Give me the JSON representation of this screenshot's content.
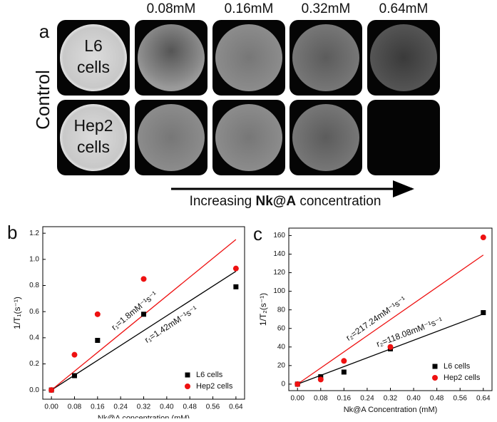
{
  "panel_a": {
    "label": "a",
    "columns": [
      "0.08mM",
      "0.16mM",
      "0.32mM",
      "0.64mM"
    ],
    "row_title": "Control",
    "rows": [
      [
        "L6",
        "cells"
      ],
      [
        "Hep2",
        "cells"
      ]
    ],
    "arrow_text": {
      "before": "Increasing",
      "bold": "Nk@A",
      "after": "concentration"
    }
  },
  "chart_data": [
    {
      "type": "scatter",
      "panel": "b",
      "x_label": "Nk@A concentration (mM)",
      "y_label": "1/T₁(s⁻¹)",
      "x": [
        0,
        0.08,
        0.16,
        0.32,
        0.64
      ],
      "series": [
        {
          "name": "L6 cells",
          "color": "#000000",
          "marker": "square",
          "values": [
            0,
            0.11,
            0.38,
            0.58,
            0.79
          ]
        },
        {
          "name": "Hep2 cells",
          "color": "#ee1111",
          "marker": "circle",
          "values": [
            0,
            0.27,
            0.58,
            0.85,
            0.93
          ]
        }
      ],
      "fits": [
        {
          "color": "#000000",
          "slope": 1.42,
          "label": "r₁=1.42mM⁻¹s⁻¹"
        },
        {
          "color": "#ee1111",
          "slope": 1.8,
          "label": "r₁=1.8mM⁻¹s⁻¹"
        }
      ],
      "xlim": [
        -0.03,
        0.67
      ],
      "ylim": [
        -0.07,
        1.25
      ],
      "xticks": [
        {
          "value": 0,
          "label": "0.00"
        },
        {
          "value": 0.08,
          "label": "0.08"
        },
        {
          "value": 0.16,
          "label": "0.16"
        },
        {
          "value": 0.24,
          "label": "0.24"
        },
        {
          "value": 0.32,
          "label": "0.32"
        },
        {
          "value": 0.4,
          "label": "0.40"
        },
        {
          "value": 0.48,
          "label": "0.48"
        },
        {
          "value": 0.56,
          "label": "0.56"
        },
        {
          "value": 0.64,
          "label": "0.64"
        }
      ],
      "yticks": [
        {
          "value": 0,
          "label": "0.0"
        },
        {
          "value": 0.2,
          "label": "0.2"
        },
        {
          "value": 0.4,
          "label": "0.4"
        },
        {
          "value": 0.6,
          "label": "0.6"
        },
        {
          "value": 0.8,
          "label": "0.8"
        },
        {
          "value": 1,
          "label": "1.0"
        },
        {
          "value": 1.2,
          "label": "1.2"
        }
      ],
      "legend": "lower right"
    },
    {
      "type": "scatter",
      "panel": "c",
      "x_label": "Nk@A Concentration (mM)",
      "y_label": "1/T₂(s⁻¹)",
      "x": [
        0,
        0.08,
        0.16,
        0.32,
        0.64
      ],
      "series": [
        {
          "name": "L6 cells",
          "color": "#000000",
          "marker": "square",
          "values": [
            0,
            8,
            13,
            38,
            77
          ]
        },
        {
          "name": "Hep2 cells",
          "color": "#ee1111",
          "marker": "circle",
          "values": [
            0,
            5,
            25,
            40,
            158
          ]
        }
      ],
      "fits": [
        {
          "color": "#000000",
          "slope": 118.08,
          "label": "r₂=118.08mM⁻¹s⁻¹"
        },
        {
          "color": "#ee1111",
          "slope": 217.24,
          "label": "r₂=217.24mM⁻¹s⁻¹"
        }
      ],
      "xlim": [
        -0.03,
        0.67
      ],
      "ylim": [
        -7,
        168
      ],
      "xticks": [
        {
          "value": 0,
          "label": "0.00"
        },
        {
          "value": 0.08,
          "label": "0.08"
        },
        {
          "value": 0.16,
          "label": "0.16"
        },
        {
          "value": 0.24,
          "label": "0.24"
        },
        {
          "value": 0.32,
          "label": "0.32"
        },
        {
          "value": 0.4,
          "label": "0.40"
        },
        {
          "value": 0.48,
          "label": "0.48"
        },
        {
          "value": 0.56,
          "label": "0.56"
        },
        {
          "value": 0.64,
          "label": "0.64"
        }
      ],
      "yticks": [
        0,
        20,
        40,
        60,
        80,
        100,
        120,
        140,
        160
      ],
      "legend": "lower right"
    }
  ]
}
